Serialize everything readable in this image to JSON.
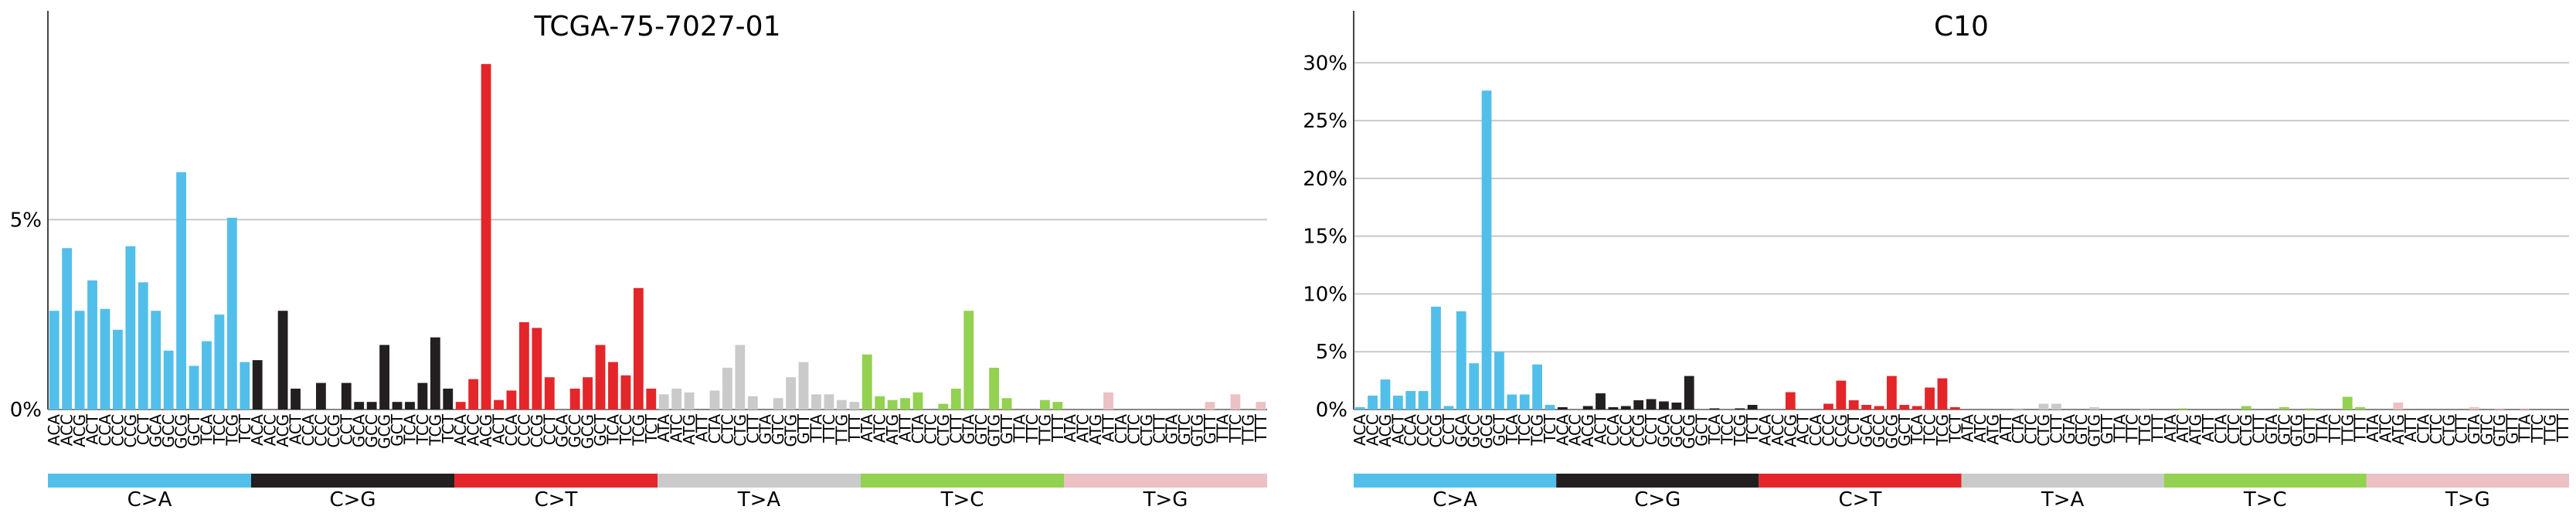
{
  "palette": {
    "C>A": "#52bfea",
    "C>G": "#231f20",
    "C>T": "#e4262a",
    "T>A": "#cbcacb",
    "T>C": "#93d150",
    "T>G": "#ebc1c3"
  },
  "chart_data": [
    {
      "type": "bar",
      "title": "TCGA-75-7027-01",
      "yticks": [
        "0%",
        "5%"
      ],
      "ytick_values": [
        0,
        5
      ],
      "ylim": [
        0,
        10.5
      ],
      "grid": true,
      "groups": [
        {
          "label": "C>A",
          "contexts": [
            "ACA",
            "ACC",
            "ACG",
            "ACT",
            "CCA",
            "CCC",
            "CCG",
            "CCT",
            "GCA",
            "GCC",
            "GCG",
            "GCT",
            "TCA",
            "TCC",
            "TCG",
            "TCT"
          ],
          "values": [
            2.6,
            4.25,
            2.6,
            3.4,
            2.65,
            2.1,
            4.3,
            3.35,
            2.6,
            1.55,
            6.25,
            1.15,
            1.8,
            2.5,
            5.05,
            1.25
          ]
        },
        {
          "label": "C>G",
          "contexts": [
            "ACA",
            "ACC",
            "ACG",
            "ACT",
            "CCA",
            "CCC",
            "CCG",
            "CCT",
            "GCA",
            "GCC",
            "GCG",
            "GCT",
            "TCA",
            "TCC",
            "TCG",
            "TCT"
          ],
          "values": [
            1.3,
            0.0,
            2.6,
            0.55,
            0.0,
            0.7,
            0.0,
            0.7,
            0.2,
            0.2,
            1.7,
            0.2,
            0.2,
            0.7,
            1.9,
            0.55
          ]
        },
        {
          "label": "C>T",
          "contexts": [
            "ACA",
            "ACC",
            "ACG",
            "ACT",
            "CCA",
            "CCC",
            "CCG",
            "CCT",
            "GCA",
            "GCC",
            "GCG",
            "GCT",
            "TCA",
            "TCC",
            "TCG",
            "TCT"
          ],
          "values": [
            0.2,
            0.8,
            9.1,
            0.25,
            0.5,
            2.3,
            2.15,
            0.85,
            0.0,
            0.55,
            0.85,
            1.7,
            1.25,
            0.9,
            3.2,
            0.55
          ]
        },
        {
          "label": "T>A",
          "contexts": [
            "ATA",
            "ATC",
            "ATG",
            "ATT",
            "CTA",
            "CTC",
            "CTG",
            "CTT",
            "GTA",
            "GTC",
            "GTG",
            "GTT",
            "TTA",
            "TTC",
            "TTG",
            "TTT"
          ],
          "values": [
            0.4,
            0.55,
            0.45,
            0.0,
            0.5,
            1.1,
            1.7,
            0.35,
            0.0,
            0.3,
            0.85,
            1.25,
            0.4,
            0.4,
            0.25,
            0.2
          ]
        },
        {
          "label": "T>C",
          "contexts": [
            "ATA",
            "ATC",
            "ATG",
            "ATT",
            "CTA",
            "CTC",
            "CTG",
            "CTT",
            "GTA",
            "GTC",
            "GTG",
            "GTT",
            "TTA",
            "TTC",
            "TTG",
            "TTT"
          ],
          "values": [
            1.45,
            0.35,
            0.25,
            0.3,
            0.45,
            0.0,
            0.15,
            0.55,
            2.6,
            0.0,
            1.1,
            0.3,
            0.0,
            0.0,
            0.25,
            0.2
          ]
        },
        {
          "label": "T>G",
          "contexts": [
            "ATA",
            "ATC",
            "ATG",
            "ATT",
            "CTA",
            "CTC",
            "CTG",
            "CTT",
            "GTA",
            "GTC",
            "GTG",
            "GTT",
            "TTA",
            "TTC",
            "TTG",
            "TTT"
          ],
          "values": [
            0.0,
            0.0,
            0.0,
            0.45,
            0.0,
            0.0,
            0.0,
            0.0,
            0.0,
            0.0,
            0.0,
            0.2,
            0.0,
            0.4,
            0.0,
            0.2
          ]
        }
      ]
    },
    {
      "type": "bar",
      "title": "C10",
      "yticks": [
        "0%",
        "5%",
        "10%",
        "15%",
        "20%",
        "25%",
        "30%"
      ],
      "ytick_values": [
        0,
        5,
        10,
        15,
        20,
        25,
        30
      ],
      "ylim": [
        0,
        34.5
      ],
      "grid": true,
      "groups": [
        {
          "label": "C>A",
          "contexts": [
            "ACA",
            "ACC",
            "ACG",
            "ACT",
            "CCA",
            "CCC",
            "CCG",
            "CCT",
            "GCA",
            "GCC",
            "GCG",
            "GCT",
            "TCA",
            "TCC",
            "TCG",
            "TCT"
          ],
          "values": [
            0.2,
            1.2,
            2.6,
            1.2,
            1.6,
            1.6,
            8.9,
            0.3,
            8.5,
            4.0,
            27.6,
            5.0,
            1.3,
            1.3,
            3.9,
            0.4
          ]
        },
        {
          "label": "C>G",
          "contexts": [
            "ACA",
            "ACC",
            "ACG",
            "ACT",
            "CCA",
            "CCC",
            "CCG",
            "CCT",
            "GCA",
            "GCC",
            "GCG",
            "GCT",
            "TCA",
            "TCC",
            "TCG",
            "TCT"
          ],
          "values": [
            0.2,
            0.0,
            0.3,
            1.4,
            0.2,
            0.3,
            0.8,
            0.9,
            0.7,
            0.6,
            2.9,
            0.0,
            0.1,
            0.0,
            0.1,
            0.4
          ]
        },
        {
          "label": "C>T",
          "contexts": [
            "ACA",
            "ACC",
            "ACG",
            "ACT",
            "CCA",
            "CCC",
            "CCG",
            "CCT",
            "GCA",
            "GCC",
            "GCG",
            "GCT",
            "TCA",
            "TCC",
            "TCG",
            "TCT"
          ],
          "values": [
            0.0,
            0.0,
            1.5,
            0.0,
            0.0,
            0.5,
            2.5,
            0.8,
            0.4,
            0.3,
            2.9,
            0.4,
            0.3,
            1.9,
            2.7,
            0.2
          ]
        },
        {
          "label": "T>A",
          "contexts": [
            "ATA",
            "ATC",
            "ATG",
            "ATT",
            "CTA",
            "CTC",
            "CTG",
            "CTT",
            "GTA",
            "GTC",
            "GTG",
            "GTT",
            "TTA",
            "TTC",
            "TTG",
            "TTT"
          ],
          "values": [
            0.0,
            0.0,
            0.0,
            0.0,
            0.1,
            0.0,
            0.5,
            0.5,
            0.0,
            0.0,
            0.2,
            0.0,
            0.0,
            0.0,
            0.1,
            0.0
          ]
        },
        {
          "label": "T>C",
          "contexts": [
            "ATA",
            "ATC",
            "ATG",
            "ATT",
            "CTA",
            "CTC",
            "CTG",
            "CTT",
            "GTA",
            "GTC",
            "GTG",
            "GTT",
            "TTA",
            "TTC",
            "TTG",
            "TTT"
          ],
          "values": [
            0.0,
            0.1,
            0.0,
            0.0,
            0.0,
            0.0,
            0.3,
            0.0,
            0.0,
            0.2,
            0.0,
            0.1,
            0.0,
            0.0,
            1.1,
            0.2
          ]
        },
        {
          "label": "T>G",
          "contexts": [
            "ATA",
            "ATC",
            "ATG",
            "ATT",
            "CTA",
            "CTC",
            "CTG",
            "CTT",
            "GTA",
            "GTC",
            "GTG",
            "GTT",
            "TTA",
            "TTC",
            "TTG",
            "TTT"
          ],
          "values": [
            0.0,
            0.0,
            0.6,
            0.0,
            0.0,
            0.0,
            0.0,
            0.0,
            0.2,
            0.0,
            0.1,
            0.0,
            0.1,
            0.0,
            0.0,
            0.0
          ]
        }
      ]
    }
  ]
}
